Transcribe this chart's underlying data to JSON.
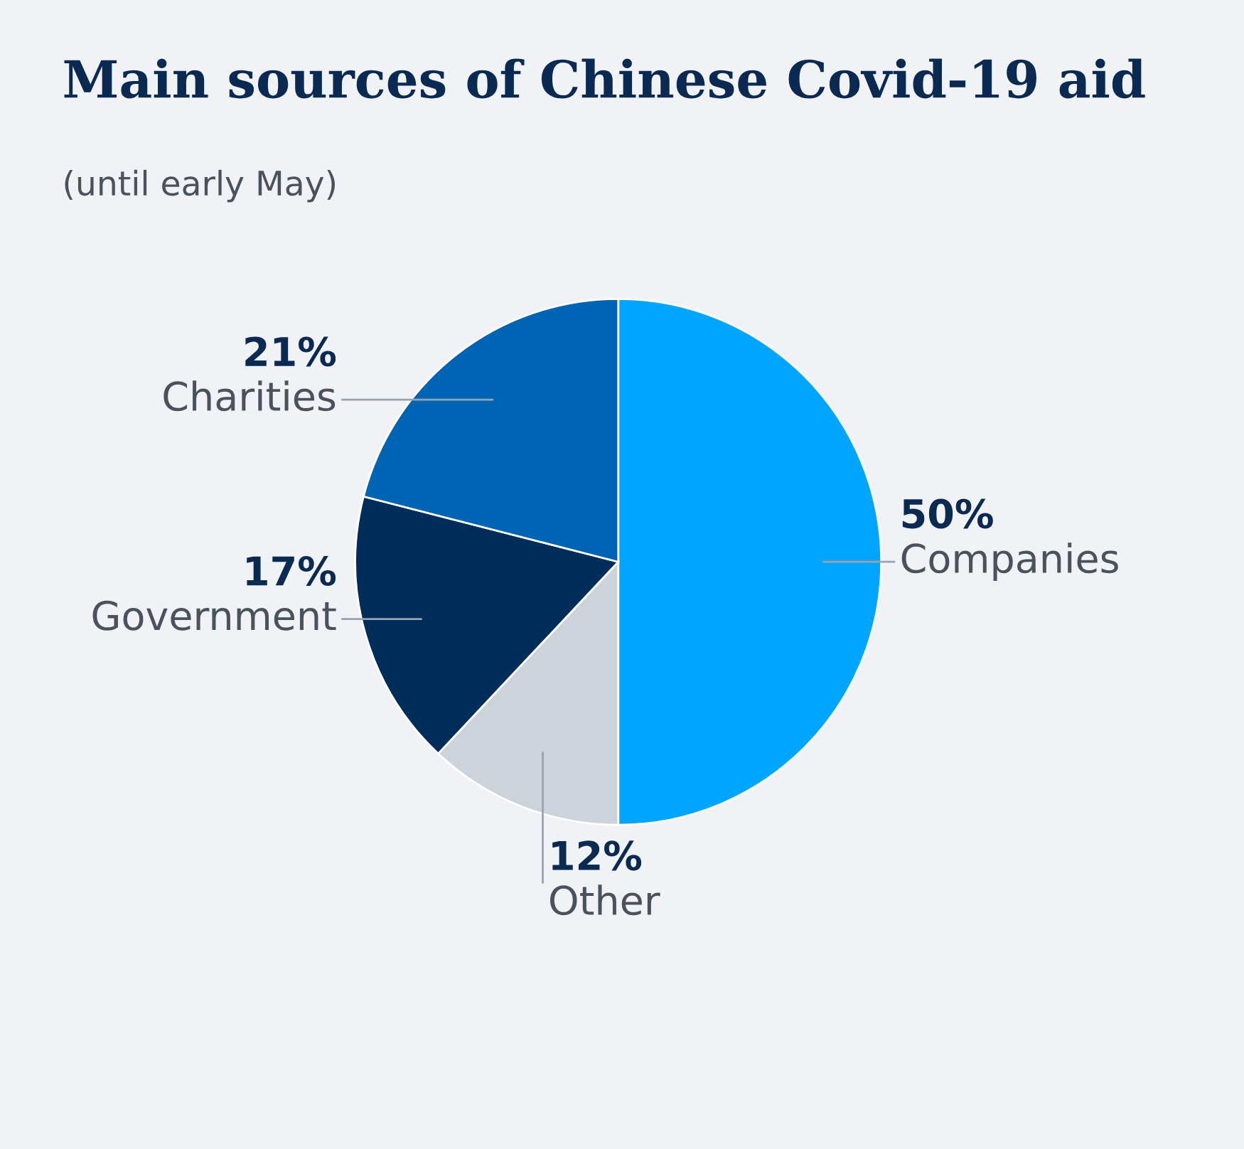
{
  "chart_data": {
    "type": "pie",
    "title": "Main sources of Chinese Covid-19 aid",
    "subtitle": "(until early May)",
    "categories": [
      "Companies",
      "Other",
      "Government",
      "Charities"
    ],
    "values": [
      50,
      12,
      17,
      21
    ],
    "value_labels": [
      "50%",
      "12%",
      "17%",
      "21%"
    ],
    "colors": [
      "#00a5ff",
      "#cdd3da",
      "#002d5a",
      "#0064b4"
    ],
    "legend": false
  }
}
